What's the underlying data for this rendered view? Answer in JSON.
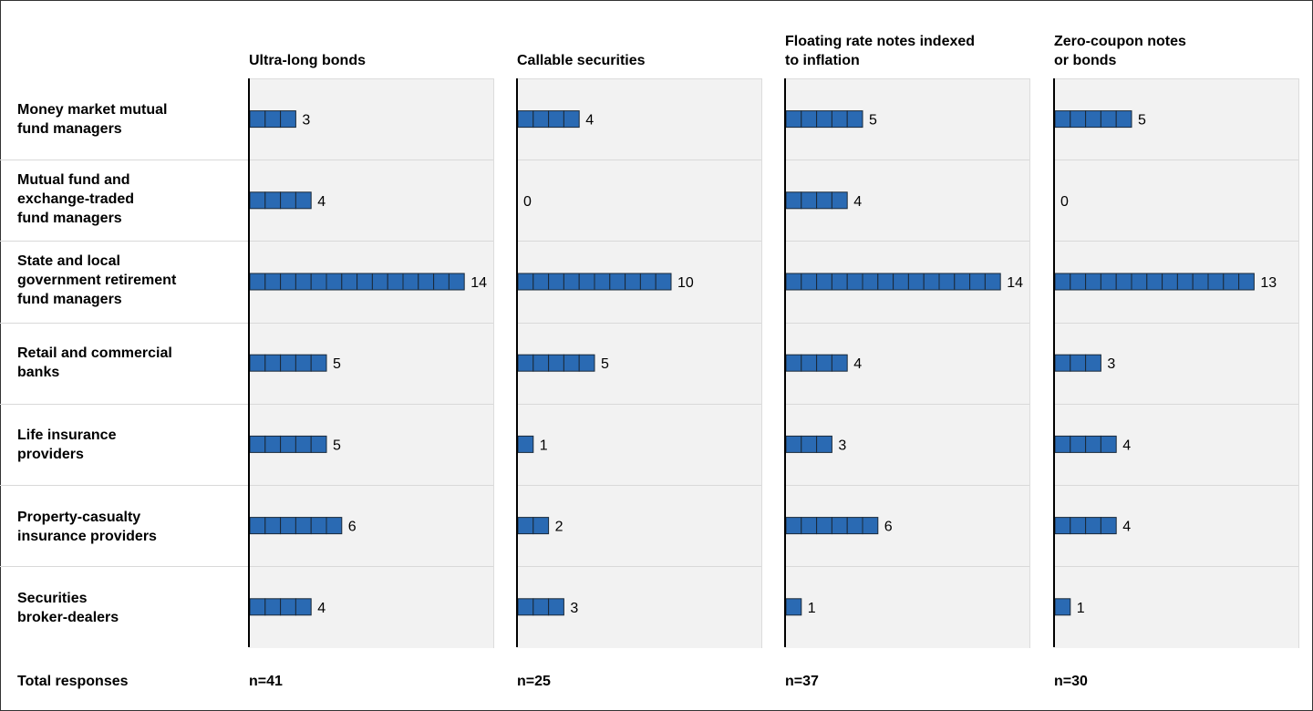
{
  "chart_data": {
    "type": "bar",
    "total_label": "Total responses",
    "categories": [
      "Money market mutual\nfund managers",
      "Mutual fund and\nexchange-traded\nfund managers",
      "State and local\ngovernment retirement\nfund managers",
      "Retail and commercial\nbanks",
      "Life insurance\nproviders",
      "Property-casualty\ninsurance providers",
      "Securities\nbroker-dealers"
    ],
    "series": [
      {
        "name": "Ultra-long bonds",
        "values": [
          3,
          4,
          14,
          5,
          5,
          6,
          4
        ],
        "total": "n=41"
      },
      {
        "name": "Callable securities",
        "values": [
          4,
          0,
          10,
          5,
          1,
          2,
          3
        ],
        "total": "n=25"
      },
      {
        "name": "Floating rate notes indexed\nto inflation",
        "values": [
          5,
          4,
          14,
          4,
          3,
          6,
          1
        ],
        "total": "n=37"
      },
      {
        "name": "Zero-coupon notes\nor bonds",
        "values": [
          5,
          0,
          13,
          3,
          4,
          4,
          1
        ],
        "total": "n=30"
      }
    ],
    "colors": {
      "bar": "#2a6ab3",
      "bar_border": "#1b2a3a",
      "panel": "#f2f2f2",
      "axis": "#000000"
    }
  }
}
